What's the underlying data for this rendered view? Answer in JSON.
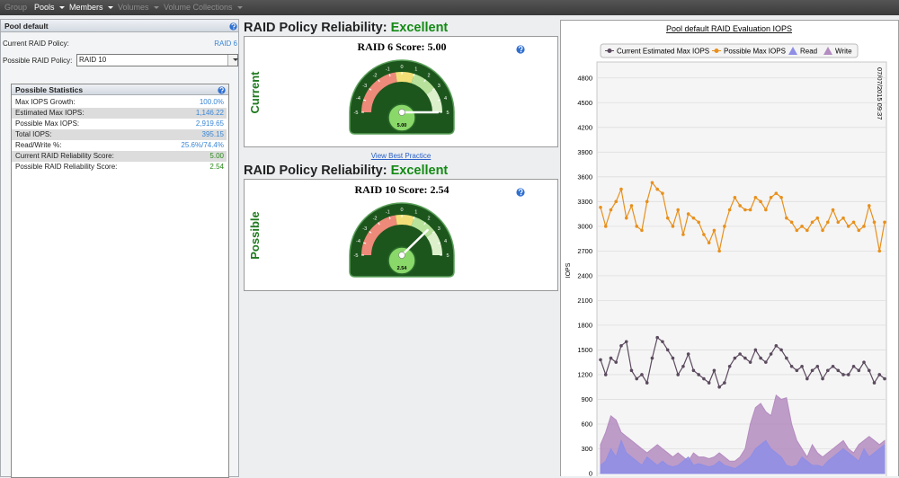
{
  "menu": [
    {
      "label": "Group",
      "enabled": false
    },
    {
      "label": "Pools",
      "enabled": true
    },
    {
      "label": "Members",
      "enabled": true
    },
    {
      "label": "Volumes",
      "enabled": false
    },
    {
      "label": "Volume Collections",
      "enabled": false
    }
  ],
  "pool_panel": {
    "title": "Pool default",
    "fields": [
      {
        "label": "Current RAID Policy:",
        "value": "RAID 6"
      },
      {
        "label": "Possible RAID Policy:",
        "value": "RAID 10"
      }
    ]
  },
  "statistics": {
    "title": "Possible Statistics",
    "rows": [
      {
        "label": "Max IOPS Growth:",
        "value": "100.0%"
      },
      {
        "label": "Estimated Max IOPS:",
        "value": "1,146.22"
      },
      {
        "label": "Possible Max IOPS:",
        "value": "2,919.65"
      },
      {
        "label": "Total IOPS:",
        "value": "395.15"
      },
      {
        "label": "Read/Write %:",
        "value": "25.6%/74.4%"
      },
      {
        "label": "Current RAID Reliability Score:",
        "value": "5.00"
      },
      {
        "label": "Possible RAID Reliability Score:",
        "value": "2.54"
      }
    ]
  },
  "evaluations": [
    {
      "heading": "RAID Policy Reliability:",
      "rating": "Excellent",
      "gauge_title": "RAID 6 Score: 5.00",
      "side_label": "Current",
      "score": 5.0,
      "score_label": "5.00",
      "ticks": [
        -5,
        -4,
        -3,
        -2,
        -1,
        0,
        1,
        2,
        3,
        4,
        5
      ]
    },
    {
      "heading": "RAID Policy Reliability:",
      "rating": "Excellent",
      "gauge_title": "RAID 10 Score: 2.54",
      "side_label": "Possible",
      "score": 2.54,
      "score_label": "2.54",
      "ticks": [
        -5,
        -4,
        -3,
        -2,
        -1,
        0,
        1,
        2,
        3,
        4,
        5
      ]
    }
  ],
  "link": "View Best Practice",
  "chart_data": {
    "type": "line",
    "title": "Pool default RAID Evaluation IOPS",
    "y_label": "IOPS",
    "annotation": "07/07/2015 09:37",
    "ylim": [
      0,
      4950
    ],
    "yticks": [
      0,
      300,
      600,
      900,
      1200,
      1500,
      1800,
      2100,
      2400,
      2700,
      3000,
      3300,
      3600,
      3900,
      4200,
      4500,
      4800
    ],
    "grid": true,
    "series": [
      {
        "name": "Current Estimated Max IOPS",
        "kind": "line",
        "color": "#5b4a5e",
        "values": [
          1380,
          1200,
          1400,
          1350,
          1550,
          1600,
          1250,
          1150,
          1200,
          1100,
          1400,
          1650,
          1600,
          1500,
          1400,
          1200,
          1300,
          1450,
          1250,
          1200,
          1150,
          1100,
          1250,
          1050,
          1100,
          1300,
          1400,
          1450,
          1400,
          1350,
          1500,
          1400,
          1350,
          1450,
          1550,
          1500,
          1400,
          1300,
          1250,
          1300,
          1150,
          1250,
          1300,
          1150,
          1250,
          1300,
          1250,
          1200,
          1200,
          1300,
          1250,
          1350,
          1250,
          1100,
          1200,
          1150
        ]
      },
      {
        "name": "Possible Max IOPS",
        "kind": "line",
        "color": "#e8901c",
        "values": [
          3230,
          3000,
          3200,
          3300,
          3450,
          3100,
          3250,
          3000,
          2950,
          3300,
          3530,
          3450,
          3400,
          3100,
          3000,
          3200,
          2900,
          3150,
          3100,
          3050,
          2900,
          2800,
          2950,
          2700,
          3000,
          3200,
          3350,
          3250,
          3200,
          3200,
          3350,
          3300,
          3200,
          3350,
          3400,
          3350,
          3100,
          3050,
          2950,
          3000,
          2950,
          3050,
          3100,
          2950,
          3050,
          3200,
          3050,
          3100,
          3000,
          3050,
          2950,
          3000,
          3250,
          3050,
          2700,
          3050
        ]
      },
      {
        "name": "Read",
        "kind": "area",
        "color": "#8e8ee6",
        "values": [
          100,
          150,
          300,
          200,
          400,
          250,
          200,
          150,
          100,
          200,
          150,
          100,
          150,
          100,
          80,
          100,
          150,
          200,
          100,
          120,
          100,
          80,
          100,
          150,
          100,
          80,
          60,
          100,
          150,
          200,
          300,
          350,
          400,
          300,
          250,
          200,
          100,
          80,
          100,
          200,
          150,
          100,
          100,
          80,
          150,
          200,
          250,
          300,
          250,
          200,
          150,
          300,
          200,
          250,
          300,
          350
        ]
      },
      {
        "name": "Write",
        "kind": "area",
        "color": "#b48cc0",
        "values": [
          350,
          500,
          700,
          650,
          500,
          450,
          400,
          350,
          300,
          250,
          300,
          350,
          300,
          250,
          200,
          250,
          200,
          150,
          250,
          200,
          200,
          180,
          200,
          250,
          200,
          150,
          150,
          200,
          300,
          600,
          800,
          850,
          750,
          700,
          950,
          900,
          920,
          600,
          400,
          300,
          200,
          350,
          250,
          200,
          250,
          300,
          350,
          400,
          300,
          250,
          350,
          400,
          450,
          400,
          350,
          400
        ]
      }
    ]
  }
}
